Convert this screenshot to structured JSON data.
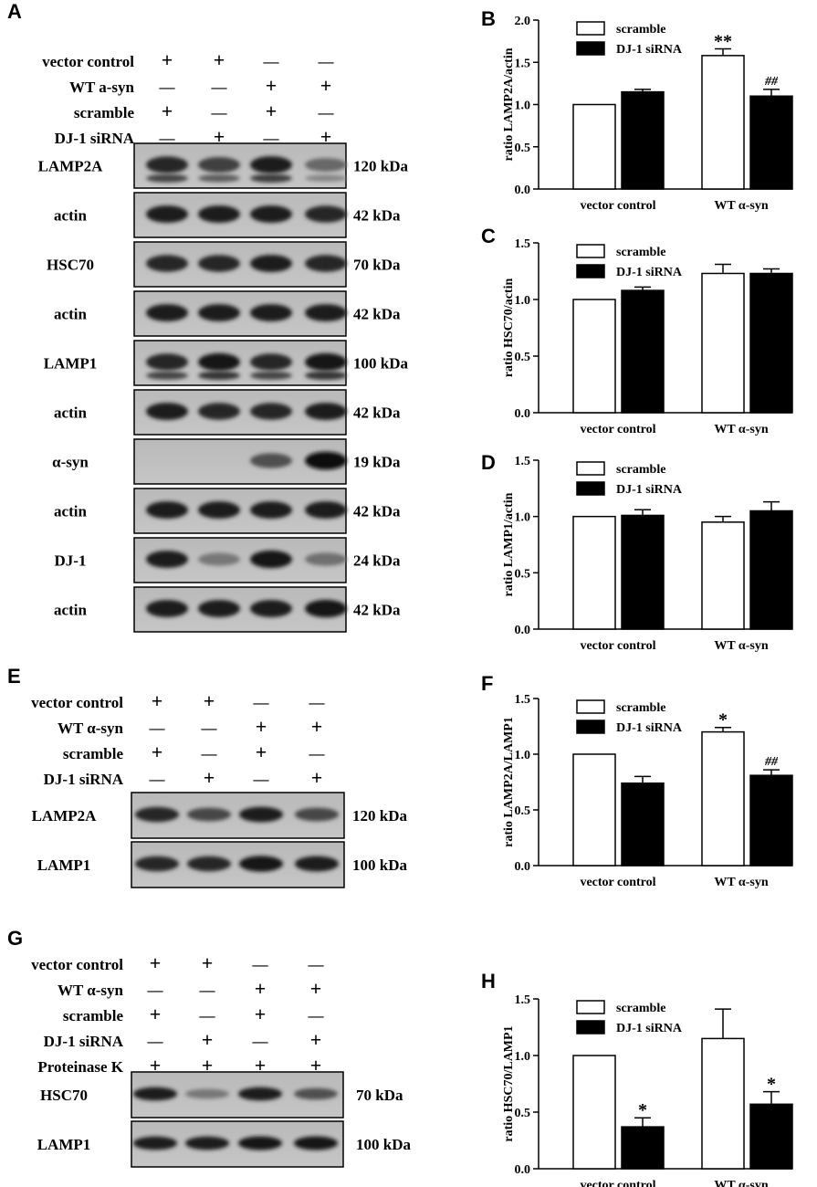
{
  "panels": {
    "a": "A",
    "b": "B",
    "c": "C",
    "d": "D",
    "e": "E",
    "f": "F",
    "g": "G",
    "h": "H"
  },
  "blot_a": {
    "conditions": [
      {
        "label": "vector control",
        "signs": [
          "+",
          "+",
          "—",
          "—"
        ]
      },
      {
        "label": "WT a-syn",
        "signs": [
          "—",
          "—",
          "+",
          "+"
        ]
      },
      {
        "label": "scramble",
        "signs": [
          "+",
          "—",
          "+",
          "—"
        ]
      },
      {
        "label": "DJ-1 siRNA",
        "signs": [
          "—",
          "+",
          "—",
          "+"
        ]
      }
    ],
    "blots": [
      {
        "label": "LAMP2A",
        "size": "120 kDa",
        "intensity": [
          0.85,
          0.7,
          0.9,
          0.45
        ],
        "smear": true
      },
      {
        "label": "actin",
        "size": "42 kDa",
        "intensity": [
          0.9,
          0.9,
          0.9,
          0.85
        ]
      },
      {
        "label": "HSC70",
        "size": "70 kDa",
        "intensity": [
          0.85,
          0.85,
          0.9,
          0.85
        ]
      },
      {
        "label": "actin",
        "size": "42 kDa",
        "intensity": [
          0.9,
          0.9,
          0.9,
          0.9
        ]
      },
      {
        "label": "LAMP1",
        "size": "100 kDa",
        "intensity": [
          0.85,
          0.95,
          0.85,
          0.95
        ],
        "smear": true
      },
      {
        "label": "actin",
        "size": "42 kDa",
        "intensity": [
          0.9,
          0.85,
          0.85,
          0.9
        ]
      },
      {
        "label": "α-syn",
        "size": "19 kDa",
        "intensity": [
          0.0,
          0.0,
          0.6,
          1.0
        ]
      },
      {
        "label": "actin",
        "size": "42 kDa",
        "intensity": [
          0.9,
          0.9,
          0.9,
          0.9
        ]
      },
      {
        "label": "DJ-1",
        "size": "24 kDa",
        "intensity": [
          0.9,
          0.35,
          0.95,
          0.4
        ]
      },
      {
        "label": "actin",
        "size": "42 kDa",
        "intensity": [
          0.9,
          0.9,
          0.9,
          0.95
        ]
      }
    ]
  },
  "blot_e": {
    "conditions": [
      {
        "label": "vector control",
        "signs": [
          "+",
          "+",
          "—",
          "—"
        ]
      },
      {
        "label": "WT α-syn",
        "signs": [
          "—",
          "—",
          "+",
          "+"
        ]
      },
      {
        "label": "scramble",
        "signs": [
          "+",
          "—",
          "+",
          "—"
        ]
      },
      {
        "label": "DJ-1 siRNA",
        "signs": [
          "—",
          "+",
          "—",
          "+"
        ]
      }
    ],
    "blots": [
      {
        "label": "LAMP2A",
        "size": "120 kDa",
        "intensity": [
          0.85,
          0.65,
          0.9,
          0.65
        ]
      },
      {
        "label": "LAMP1",
        "size": "100 kDa",
        "intensity": [
          0.85,
          0.85,
          0.95,
          0.9
        ]
      }
    ]
  },
  "blot_g": {
    "conditions": [
      {
        "label": "vector control",
        "signs": [
          "+",
          "+",
          "—",
          "—"
        ]
      },
      {
        "label": "WT α-syn",
        "signs": [
          "—",
          "—",
          "+",
          "+"
        ]
      },
      {
        "label": "scramble",
        "signs": [
          "+",
          "—",
          "+",
          "—"
        ]
      },
      {
        "label": "DJ-1 siRNA",
        "signs": [
          "—",
          "+",
          "—",
          "+"
        ]
      },
      {
        "label": "Proteinase K",
        "signs": [
          "+",
          "+",
          "+",
          "+"
        ]
      }
    ],
    "blots": [
      {
        "label": "HSC70",
        "size": "70 kDa",
        "intensity": [
          0.9,
          0.35,
          0.9,
          0.6
        ]
      },
      {
        "label": "LAMP1",
        "size": "100 kDa",
        "intensity": [
          0.9,
          0.9,
          0.95,
          0.95
        ]
      }
    ]
  },
  "chart_data": [
    {
      "type": "bar",
      "panel": "B",
      "categories": [
        "vector control",
        "WT α-syn"
      ],
      "ylabel": "ratio LAMP2A/actin",
      "ylim": [
        0,
        2.0
      ],
      "ticks": [
        "0.0",
        "0.5",
        "1.0",
        "1.5",
        "2.0"
      ],
      "legend_position": "top",
      "grid": false,
      "series": [
        {
          "name": "scramble",
          "values": [
            1.0,
            1.58
          ],
          "errors": [
            0,
            0.08
          ],
          "marks": [
            "",
            "**"
          ]
        },
        {
          "name": "DJ-1 siRNA",
          "values": [
            1.15,
            1.1
          ],
          "errors": [
            0.03,
            0.08
          ],
          "marks": [
            "",
            "##"
          ]
        }
      ]
    },
    {
      "type": "bar",
      "panel": "C",
      "categories": [
        "vector control",
        "WT α-syn"
      ],
      "ylabel": "ratio HSC70/actin",
      "ylim": [
        0,
        1.5
      ],
      "ticks": [
        "0.0",
        "0.5",
        "1.0",
        "1.5"
      ],
      "legend_position": "top",
      "grid": false,
      "series": [
        {
          "name": "scramble",
          "values": [
            1.0,
            1.23
          ],
          "errors": [
            0,
            0.08
          ],
          "marks": [
            "",
            ""
          ]
        },
        {
          "name": "DJ-1 siRNA",
          "values": [
            1.08,
            1.23
          ],
          "errors": [
            0.03,
            0.04
          ],
          "marks": [
            "",
            ""
          ]
        }
      ]
    },
    {
      "type": "bar",
      "panel": "D",
      "categories": [
        "vector control",
        "WT α-syn"
      ],
      "ylabel": "ratio LAMP1/actin",
      "ylim": [
        0,
        1.5
      ],
      "ticks": [
        "0.0",
        "0.5",
        "1.0",
        "1.5"
      ],
      "legend_position": "top",
      "grid": false,
      "series": [
        {
          "name": "scramble",
          "values": [
            1.0,
            0.95
          ],
          "errors": [
            0,
            0.05
          ],
          "marks": [
            "",
            ""
          ]
        },
        {
          "name": "DJ-1 siRNA",
          "values": [
            1.01,
            1.05
          ],
          "errors": [
            0.05,
            0.08
          ],
          "marks": [
            "",
            ""
          ]
        }
      ]
    },
    {
      "type": "bar",
      "panel": "F",
      "categories": [
        "vector control",
        "WT α-syn"
      ],
      "ylabel": "ratio LAMP2A/LAMP1",
      "ylim": [
        0,
        1.5
      ],
      "ticks": [
        "0.0",
        "0.5",
        "1.0",
        "1.5"
      ],
      "legend_position": "top",
      "grid": false,
      "series": [
        {
          "name": "scramble",
          "values": [
            1.0,
            1.2
          ],
          "errors": [
            0,
            0.04
          ],
          "marks": [
            "",
            "*"
          ]
        },
        {
          "name": "DJ-1 siRNA",
          "values": [
            0.74,
            0.81
          ],
          "errors": [
            0.06,
            0.05
          ],
          "marks": [
            "",
            "##"
          ]
        }
      ]
    },
    {
      "type": "bar",
      "panel": "H",
      "categories": [
        "vector control",
        "WT α-syn"
      ],
      "ylabel": "ratio HSC70/LAMP1",
      "ylim": [
        0,
        1.5
      ],
      "ticks": [
        "0.0",
        "0.5",
        "1.0",
        "1.5"
      ],
      "legend_position": "top",
      "grid": false,
      "series": [
        {
          "name": "scramble",
          "values": [
            1.0,
            1.15
          ],
          "errors": [
            0,
            0.26
          ],
          "marks": [
            "",
            ""
          ]
        },
        {
          "name": "DJ-1 siRNA",
          "values": [
            0.37,
            0.57
          ],
          "errors": [
            0.08,
            0.11
          ],
          "marks": [
            "*",
            "*"
          ]
        }
      ]
    }
  ]
}
